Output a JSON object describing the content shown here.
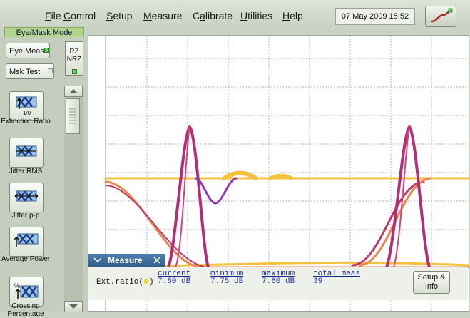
{
  "menu": {
    "items": [
      {
        "first": "F",
        "rest": "ile"
      },
      {
        "first": "C",
        "rest": "ontrol"
      },
      {
        "first": "S",
        "rest": "etup"
      },
      {
        "first": "M",
        "rest": "easure"
      },
      {
        "first": "Ca",
        "rest": "librate",
        "underline_index": 1
      },
      {
        "first": "U",
        "rest": "tilities"
      },
      {
        "first": "H",
        "rest": "elp"
      }
    ],
    "datetime": "07 May 2009  15:52"
  },
  "mode_tab": "Eye/Mask Mode",
  "left_panel": {
    "eye_meas_label": "Eye Meas",
    "mask_test_label": "Msk Test",
    "rz_label": "RZ",
    "nrz_label": "NRZ",
    "tools": [
      {
        "label": "Extinction Ratio",
        "icon": "extinction-ratio-icon"
      },
      {
        "label": "Jitter RMS",
        "icon": "jitter-rms-icon"
      },
      {
        "label": "Jitter p-p",
        "icon": "jitter-pp-icon"
      },
      {
        "label": "Average Power",
        "icon": "average-power-icon"
      },
      {
        "label": "Crossing Percentage",
        "icon": "crossing-percentage-icon"
      }
    ]
  },
  "measure": {
    "tab_title": "Measure",
    "row_label": "Ext.ratio(",
    "row_label_end": ")",
    "headers": {
      "current": "current",
      "minimum": "minimum",
      "maximum": "maximum",
      "total": "total meas"
    },
    "values": {
      "current": "7.80 dB",
      "minimum": "7.75 dB",
      "maximum": "7.80 dB",
      "total": "39"
    },
    "setup_button": "Setup & Info"
  },
  "colors": {
    "accent": "#2f5d8c",
    "led_green": "#5bd45b"
  }
}
